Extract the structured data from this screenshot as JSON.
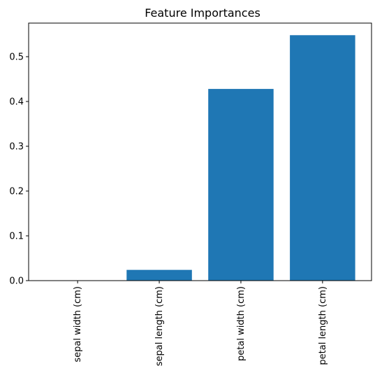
{
  "chart_data": {
    "type": "bar",
    "title": "Feature Importances",
    "xlabel": "",
    "ylabel": "",
    "categories": [
      "sepal width (cm)",
      "sepal length (cm)",
      "petal width (cm)",
      "petal length (cm)"
    ],
    "values": [
      0.0,
      0.024,
      0.428,
      0.548
    ],
    "yticks": [
      "0.0",
      "0.1",
      "0.2",
      "0.3",
      "0.4",
      "0.5"
    ],
    "ylim": [
      0,
      0.575
    ],
    "grid": false,
    "bar_color": "#1f77b4",
    "x_tick_rotation": "vertical"
  }
}
